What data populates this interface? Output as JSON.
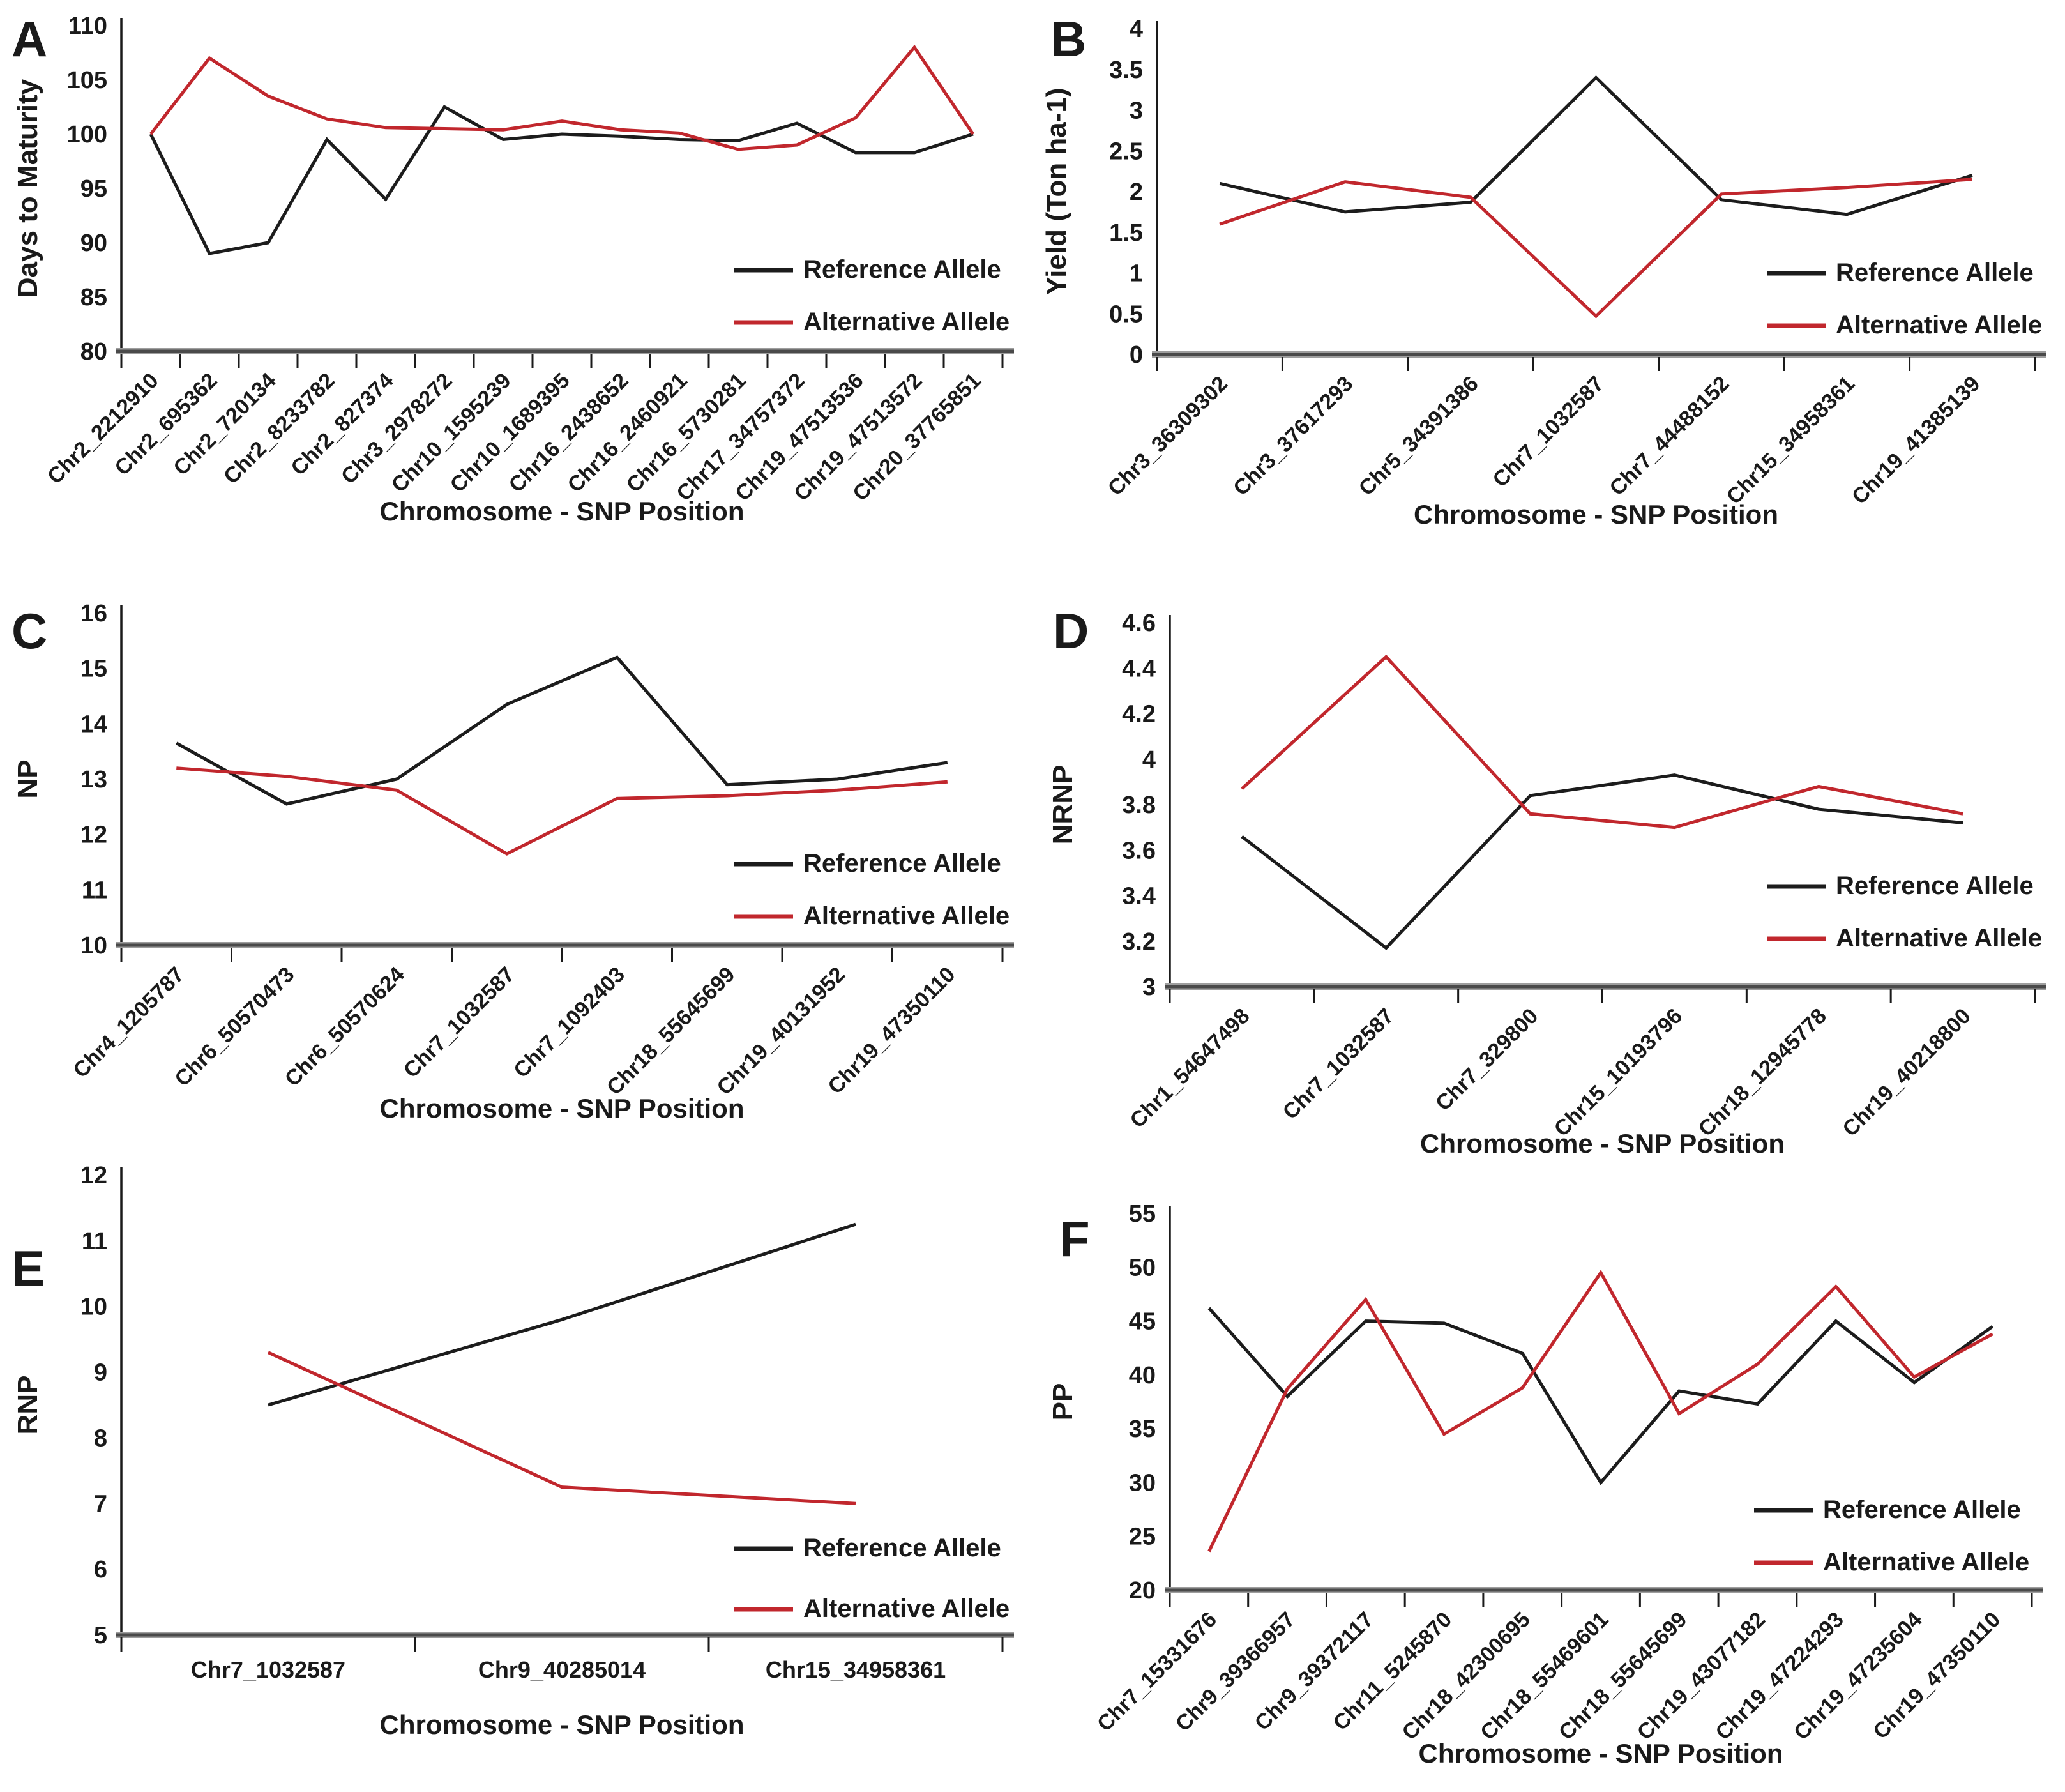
{
  "figure": {
    "background": "#ffffff",
    "xlabel": "Chromosome - SNP Position"
  },
  "colors": {
    "reference": "#1c1c1c",
    "alternative": "#c1272d",
    "text": "#1a1a1a",
    "axis": "#1a1a1a",
    "baseline_dark": "#4a4a4a",
    "baseline_halo": "#9e9e9e"
  },
  "legend_labels": {
    "reference": "Reference Allele",
    "alternative": "Alternative Allele"
  },
  "chart_data": [
    {
      "panel": "A",
      "type": "line",
      "title": "",
      "ylabel": "Days to Maturity",
      "xlabel": "Chromosome - SNP Position",
      "ylim": [
        80,
        110
      ],
      "ytick_step": 5,
      "grid": false,
      "legend_position": "bottom-right",
      "x_tick_rotation": 45,
      "categories": [
        "Chr2_2212910",
        "Chr2_695362",
        "Chr2_720134",
        "Chr2_8233782",
        "Chr2_827374",
        "Chr3_2978272",
        "Chr10_1595239",
        "Chr10_1689395",
        "Chr16_2438652",
        "Chr16_2460921",
        "Chr16_5730281",
        "Chr17_34757372",
        "Chr19_47513536",
        "Chr19_47513572",
        "Chr20_37765851"
      ],
      "series": [
        {
          "name": "Reference Allele",
          "color": "#1c1c1c",
          "values": [
            100,
            89,
            90,
            99.5,
            94,
            102.5,
            99.5,
            100,
            99.8,
            99.5,
            99.4,
            101,
            98.3,
            98.3,
            100
          ]
        },
        {
          "name": "Alternative Allele",
          "color": "#c1272d",
          "values": [
            100,
            107,
            103.5,
            101.4,
            100.6,
            100.5,
            100.4,
            101.2,
            100.4,
            100.1,
            98.6,
            99,
            101.5,
            108,
            100
          ]
        }
      ]
    },
    {
      "panel": "B",
      "type": "line",
      "title": "",
      "ylabel": "Yield (Ton ha-1)",
      "xlabel": "Chromosome - SNP Position",
      "ylim": [
        0,
        4
      ],
      "ytick_step": 0.5,
      "grid": false,
      "legend_position": "bottom-right",
      "x_tick_rotation": 45,
      "categories": [
        "Chr3_36309302",
        "Chr3_37617293",
        "Chr5_34391386",
        "Chr7_1032587",
        "Chr7_44488152",
        "Chr15_34958361",
        "Chr19_41385139"
      ],
      "series": [
        {
          "name": "Reference Allele",
          "color": "#1c1c1c",
          "values": [
            2.1,
            1.75,
            1.87,
            3.4,
            1.9,
            1.72,
            2.2
          ]
        },
        {
          "name": "Alternative Allele",
          "color": "#c1272d",
          "values": [
            1.6,
            2.12,
            1.93,
            0.47,
            1.97,
            2.05,
            2.15
          ]
        }
      ]
    },
    {
      "panel": "C",
      "type": "line",
      "title": "",
      "ylabel": "NP",
      "xlabel": "Chromosome - SNP Position",
      "ylim": [
        10,
        16
      ],
      "ytick_step": 1,
      "grid": false,
      "legend_position": "bottom-right",
      "x_tick_rotation": 45,
      "categories": [
        "Chr4_1205787",
        "Chr6_50570473",
        "Chr6_50570624",
        "Chr7_1032587",
        "Chr7_1092403",
        "Chr18_55645699",
        "Chr19_40131952",
        "Chr19_47350110"
      ],
      "series": [
        {
          "name": "Reference Allele",
          "color": "#1c1c1c",
          "values": [
            13.65,
            12.55,
            13.0,
            14.35,
            15.2,
            12.9,
            13.0,
            13.3
          ]
        },
        {
          "name": "Alternative Allele",
          "color": "#c1272d",
          "values": [
            13.2,
            13.05,
            12.8,
            11.65,
            12.65,
            12.7,
            12.8,
            12.95
          ]
        }
      ]
    },
    {
      "panel": "D",
      "type": "line",
      "title": "",
      "ylabel": "NRNP",
      "xlabel": "Chromosome - SNP Position",
      "ylim": [
        3,
        4.6
      ],
      "ytick_step": 0.2,
      "grid": false,
      "legend_position": "bottom-right",
      "x_tick_rotation": 45,
      "categories": [
        "Chr1_54647498",
        "Chr7_1032587",
        "Chr7_329800",
        "Chr15_10193796",
        "Chr18_12945778",
        "Chr19_40218800"
      ],
      "series": [
        {
          "name": "Reference Allele",
          "color": "#1c1c1c",
          "values": [
            3.66,
            3.17,
            3.84,
            3.93,
            3.78,
            3.72
          ]
        },
        {
          "name": "Alternative Allele",
          "color": "#c1272d",
          "values": [
            3.87,
            4.45,
            3.76,
            3.7,
            3.88,
            3.76
          ]
        }
      ]
    },
    {
      "panel": "E",
      "type": "line",
      "title": "",
      "ylabel": "RNP",
      "xlabel": "Chromosome - SNP Position",
      "ylim": [
        5,
        12
      ],
      "ytick_step": 1,
      "grid": false,
      "legend_position": "bottom-right",
      "x_tick_rotation": 0,
      "categories": [
        "Chr7_1032587",
        "Chr9_40285014",
        "Chr15_34958361"
      ],
      "series": [
        {
          "name": "Reference Allele",
          "color": "#1c1c1c",
          "values": [
            8.5,
            9.8,
            11.25
          ]
        },
        {
          "name": "Alternative Allele",
          "color": "#c1272d",
          "values": [
            9.3,
            7.25,
            7.0
          ]
        }
      ]
    },
    {
      "panel": "F",
      "type": "line",
      "title": "",
      "ylabel": "PP",
      "xlabel": "Chromosome - SNP Position",
      "ylim": [
        20,
        55
      ],
      "ytick_step": 5,
      "grid": false,
      "legend_position": "bottom-right",
      "x_tick_rotation": 45,
      "categories": [
        "Chr7_15331676",
        "Chr9_39366957",
        "Chr9_39372117",
        "Chr11_5245870",
        "Chr18_42300695",
        "Chr18_55469601",
        "Chr18_55645699",
        "Chr19_43077182",
        "Chr19_47224293",
        "Chr19_47235604",
        "Chr19_47350110"
      ],
      "series": [
        {
          "name": "Reference Allele",
          "color": "#1c1c1c",
          "values": [
            46.2,
            38.0,
            45.0,
            44.8,
            42.0,
            30.0,
            38.5,
            37.3,
            45.0,
            39.3,
            44.5
          ]
        },
        {
          "name": "Alternative Allele",
          "color": "#c1272d",
          "values": [
            23.6,
            38.7,
            47.0,
            34.5,
            38.8,
            49.5,
            36.4,
            41.0,
            48.2,
            39.8,
            43.8
          ]
        }
      ]
    }
  ]
}
